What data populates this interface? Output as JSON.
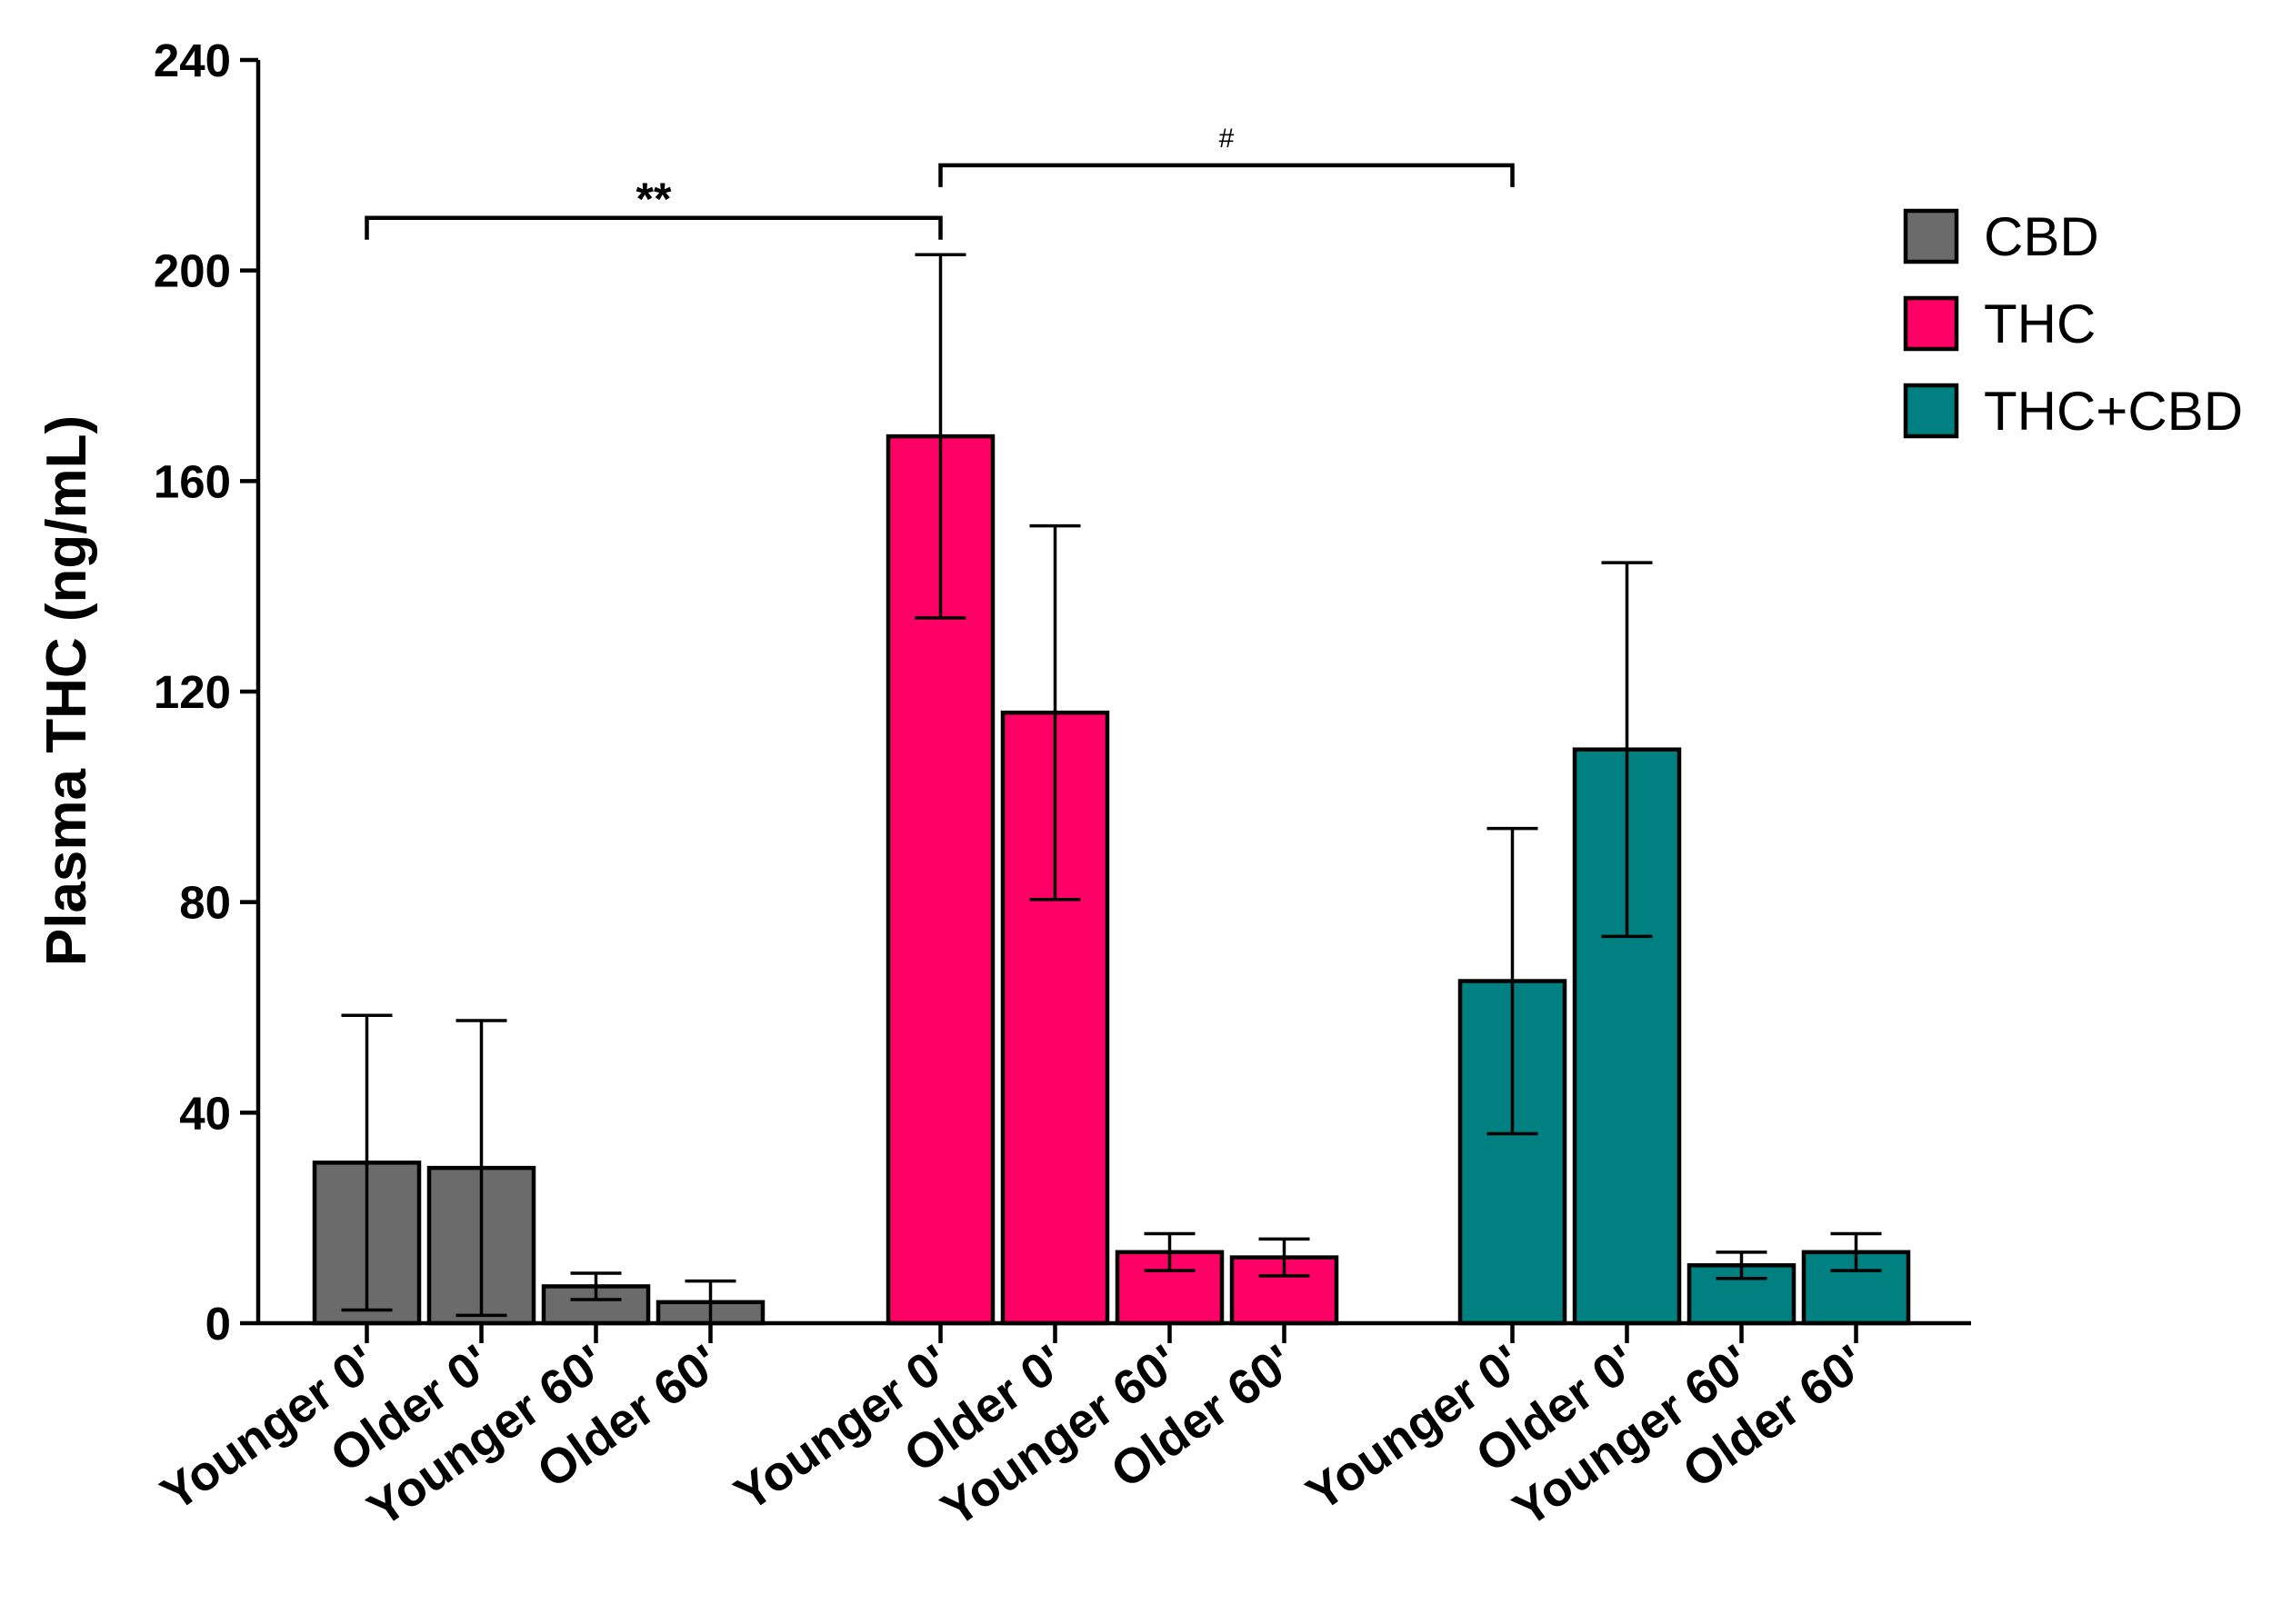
{
  "chart_data": {
    "type": "bar",
    "ylabel": "Plasma THC (ng/mL)",
    "xlabel": "",
    "ylim": [
      0,
      240
    ],
    "yticks": [
      "0",
      "40",
      "80",
      "120",
      "160",
      "200",
      "240"
    ],
    "series": [
      {
        "name": "CBD",
        "color": "#6b6b6b",
        "categories": [
          "Younger 0'",
          "Older 0'",
          "Younger 60'",
          "Older 60'"
        ],
        "values": [
          30.5,
          29.5,
          7,
          4
        ],
        "errors": [
          28,
          28,
          2.5,
          4
        ]
      },
      {
        "name": "THC",
        "color": "#ff0066",
        "categories": [
          "Younger 0'",
          "Older 0'",
          "Younger 60'",
          "Older 60'"
        ],
        "values": [
          168.5,
          116,
          13.5,
          12.5
        ],
        "errors": [
          34.5,
          35.5,
          3.5,
          3.5
        ]
      },
      {
        "name": "THC+CBD",
        "color": "#008080",
        "categories": [
          "Younger 0'",
          "Older 0'",
          "Younger 60'",
          "Older 60'"
        ],
        "values": [
          65,
          109,
          11,
          13.5
        ],
        "errors": [
          29,
          35.5,
          2.5,
          3.5
        ]
      }
    ],
    "annotations": [
      {
        "text": "**",
        "from": [
          0,
          0
        ],
        "to": [
          1,
          0
        ],
        "y": 210,
        "style": "star"
      },
      {
        "text": "#",
        "from": [
          1,
          0
        ],
        "to": [
          2,
          0
        ],
        "y": 220,
        "style": "hash"
      }
    ],
    "legend": {
      "position": "top-right",
      "entries": [
        "CBD",
        "THC",
        "THC+CBD"
      ]
    }
  }
}
